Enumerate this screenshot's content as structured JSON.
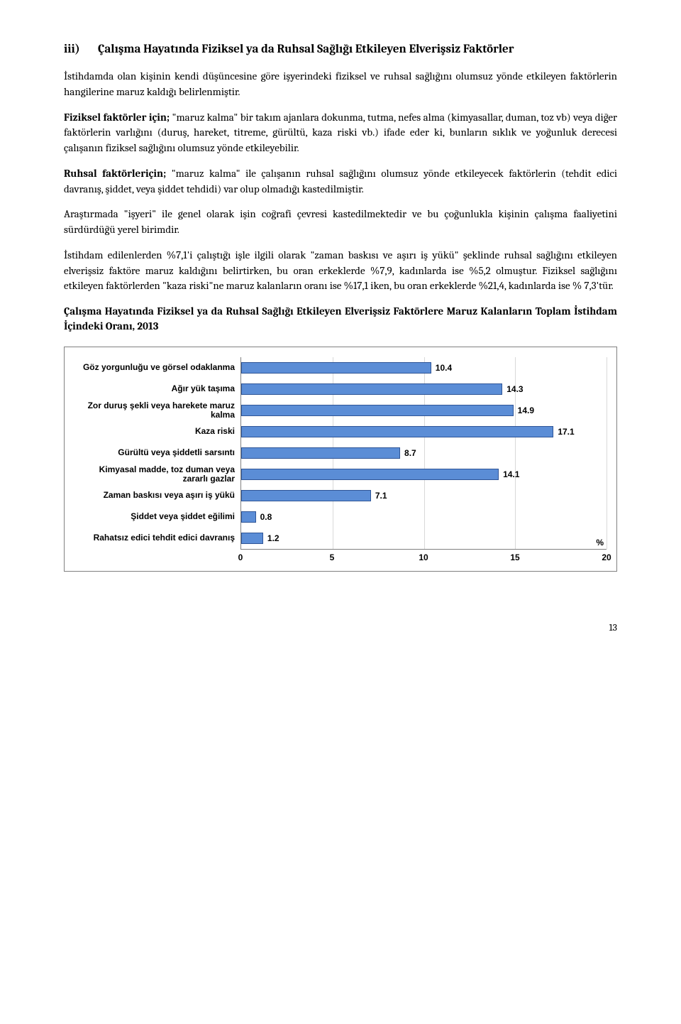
{
  "heading": {
    "number": "iii)",
    "text": "Çalışma Hayatında Fiziksel ya da Ruhsal Sağlığı Etkileyen Elverişsiz Faktörler"
  },
  "paragraphs": {
    "p1": "İstihdamda olan kişinin kendi düşüncesine göre işyerindeki fiziksel ve ruhsal sağlığını olumsuz yönde etkileyen faktörlerin hangilerine maruz kaldığı belirlenmiştir.",
    "p2_bold": "Fiziksel faktörler için;",
    "p2_rest": " \"maruz kalma\" bir takım ajanlara dokunma, tutma, nefes alma (kimyasallar, duman, toz vb) veya diğer faktörlerin varlığını (duruş, hareket, titreme, gürültü, kaza riski vb.) ifade eder ki, bunların sıklık ve yoğunluk derecesi çalışanın fiziksel sağlığını olumsuz yönde etkileyebilir.",
    "p3_bold": "Ruhsal faktörleriçin;",
    "p3_rest": " \"maruz kalma\" ile çalışanın ruhsal sağlığını olumsuz yönde etkileyecek faktörlerin (tehdit edici davranış, şiddet, veya şiddet tehdidi) var olup olmadığı kastedilmiştir.",
    "p4": "Araştırmada \"işyeri\" ile genel olarak işin coğrafi çevresi kastedilmektedir ve bu çoğunlukla kişinin çalışma faaliyetini sürdürdüğü yerel birimdir.",
    "p5": "İstihdam edilenlerden %7,1'i çalıştığı işle ilgili olarak \"zaman baskısı ve aşırı iş yükü\" şeklinde ruhsal sağlığını etkileyen elverişsiz faktöre maruz kaldığını belirtirken, bu oran erkeklerde %7,9, kadınlarda ise %5,2 olmuştur.  Fiziksel sağlığını etkileyen faktörlerden \"kaza riski\"ne maruz kalanların oranı ise %17,1 iken, bu oran erkeklerde %21,4, kadınlarda ise % 7,3'tür."
  },
  "chart_caption": "Çalışma Hayatında Fiziksel ya da Ruhsal Sağlığı Etkileyen Elverişsiz Faktörlere Maruz Kalanların Toplam İstihdam İçindeki Oranı, 2013",
  "chart": {
    "type": "horizontal_bar",
    "xlim": [
      0,
      20
    ],
    "xtick_step": 5,
    "xticks": [
      "0",
      "5",
      "10",
      "15",
      "20"
    ],
    "pct_symbol": "%",
    "bar_fill": "#5b8dd6",
    "bar_border": "#2f5597",
    "grid_color": "#d9d9d9",
    "label_fontsize": 12,
    "categories": [
      {
        "label": "Göz yorgunluğu ve görsel odaklanma",
        "value": 10.4,
        "display": "10.4"
      },
      {
        "label": "Ağır yük taşıma",
        "value": 14.3,
        "display": "14.3"
      },
      {
        "label": "Zor duruş şekli veya harekete maruz kalma",
        "value": 14.9,
        "display": "14.9"
      },
      {
        "label": "Kaza riski",
        "value": 17.1,
        "display": "17.1"
      },
      {
        "label": "Gürültü veya şiddetli sarsıntı",
        "value": 8.7,
        "display": "8.7"
      },
      {
        "label": "Kimyasal madde, toz duman veya zararlı gazlar",
        "value": 14.1,
        "display": "14.1"
      },
      {
        "label": "Zaman baskısı veya aşırı iş yükü",
        "value": 7.1,
        "display": "7.1"
      },
      {
        "label": "Şiddet veya şiddet eğilimi",
        "value": 0.8,
        "display": "0.8"
      },
      {
        "label": "Rahatsız edici tehdit edici davranış",
        "value": 1.2,
        "display": "1.2"
      }
    ]
  },
  "page_number": "13"
}
